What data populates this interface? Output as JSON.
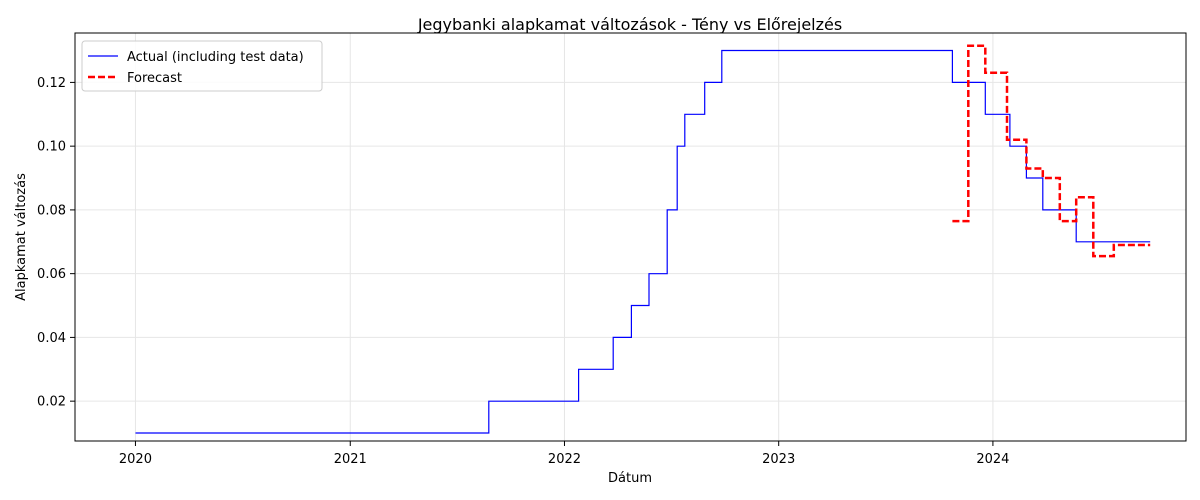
{
  "chart_data": {
    "type": "line",
    "title": "Jegybanki alapkamat változások - Tény vs Előrejelzés",
    "xlabel": "Dátum",
    "ylabel": "Alapkamat változás",
    "xlim": [
      "2019-09-20",
      "2024-11-25"
    ],
    "ylim": [
      0.0075,
      0.1355
    ],
    "x_ticks": [
      {
        "date": "2020-01-01",
        "label": "2020"
      },
      {
        "date": "2021-01-01",
        "label": "2021"
      },
      {
        "date": "2022-01-01",
        "label": "2022"
      },
      {
        "date": "2023-01-01",
        "label": "2023"
      },
      {
        "date": "2024-01-01",
        "label": "2024"
      }
    ],
    "y_ticks": [
      {
        "value": 0.02,
        "label": "0.02"
      },
      {
        "value": 0.04,
        "label": "0.04"
      },
      {
        "value": 0.06,
        "label": "0.06"
      },
      {
        "value": 0.08,
        "label": "0.08"
      },
      {
        "value": 0.1,
        "label": "0.10"
      },
      {
        "value": 0.12,
        "label": "0.12"
      }
    ],
    "grid": true,
    "legend_position": "top-left",
    "series": [
      {
        "name": "Actual (including test data)",
        "color": "#0000ff",
        "style": "solid",
        "points": [
          [
            "2020-01-01",
            0.01
          ],
          [
            "2021-08-25",
            0.01
          ],
          [
            "2021-08-25",
            0.02
          ],
          [
            "2022-01-25",
            0.02
          ],
          [
            "2022-01-25",
            0.03
          ],
          [
            "2022-03-25",
            0.03
          ],
          [
            "2022-03-25",
            0.04
          ],
          [
            "2022-04-25",
            0.04
          ],
          [
            "2022-04-25",
            0.05
          ],
          [
            "2022-05-25",
            0.05
          ],
          [
            "2022-05-25",
            0.06
          ],
          [
            "2022-06-25",
            0.06
          ],
          [
            "2022-06-25",
            0.08
          ],
          [
            "2022-07-12",
            0.08
          ],
          [
            "2022-07-12",
            0.1
          ],
          [
            "2022-07-25",
            0.1
          ],
          [
            "2022-07-25",
            0.11
          ],
          [
            "2022-08-28",
            0.11
          ],
          [
            "2022-08-28",
            0.12
          ],
          [
            "2022-09-26",
            0.12
          ],
          [
            "2022-09-26",
            0.13
          ],
          [
            "2023-10-24",
            0.13
          ],
          [
            "2023-10-24",
            0.12
          ],
          [
            "2023-12-19",
            0.12
          ],
          [
            "2023-12-19",
            0.11
          ],
          [
            "2024-01-30",
            0.11
          ],
          [
            "2024-01-30",
            0.1
          ],
          [
            "2024-02-27",
            0.1
          ],
          [
            "2024-02-27",
            0.09
          ],
          [
            "2024-03-26",
            0.09
          ],
          [
            "2024-03-26",
            0.08
          ],
          [
            "2024-05-22",
            0.08
          ],
          [
            "2024-05-22",
            0.07
          ],
          [
            "2024-09-25",
            0.07
          ]
        ]
      },
      {
        "name": "Forecast",
        "color": "#ff0000",
        "style": "dashed",
        "points": [
          [
            "2023-10-24",
            0.0765
          ],
          [
            "2023-11-20",
            0.0765
          ],
          [
            "2023-11-20",
            0.1315
          ],
          [
            "2023-12-19",
            0.1315
          ],
          [
            "2023-12-19",
            0.123
          ],
          [
            "2024-01-25",
            0.123
          ],
          [
            "2024-01-25",
            0.102
          ],
          [
            "2024-02-27",
            0.102
          ],
          [
            "2024-02-27",
            0.093
          ],
          [
            "2024-03-26",
            0.093
          ],
          [
            "2024-03-26",
            0.09
          ],
          [
            "2024-04-24",
            0.09
          ],
          [
            "2024-04-24",
            0.0765
          ],
          [
            "2024-05-22",
            0.0765
          ],
          [
            "2024-05-22",
            0.084
          ],
          [
            "2024-06-20",
            0.084
          ],
          [
            "2024-06-20",
            0.0655
          ],
          [
            "2024-07-25",
            0.0655
          ],
          [
            "2024-07-25",
            0.069
          ],
          [
            "2024-09-25",
            0.069
          ]
        ]
      }
    ]
  }
}
